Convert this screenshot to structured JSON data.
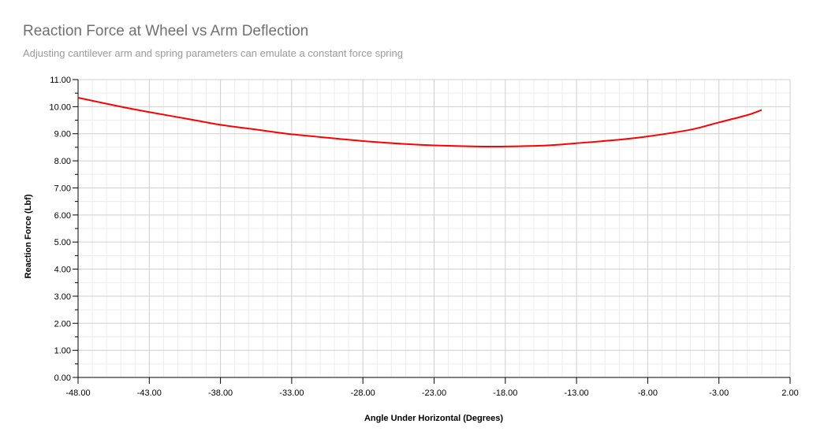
{
  "chart_data": {
    "type": "line",
    "title": "Reaction Force at Wheel vs Arm Deflection",
    "subtitle": "Adjusting cantilever arm and spring parameters can emulate a constant force spring",
    "xlabel": "Angle Under Horizontal (Degrees)",
    "ylabel": "Reaction Force (Lbf)",
    "xlim": [
      -48,
      2
    ],
    "ylim": [
      0,
      11
    ],
    "x_ticks": [
      "-48.00",
      "-43.00",
      "-38.00",
      "-33.00",
      "-28.00",
      "-23.00",
      "-18.00",
      "-13.00",
      "-8.00",
      "-3.00",
      "2.00"
    ],
    "y_ticks": [
      "0.00",
      "1.00",
      "2.00",
      "3.00",
      "4.00",
      "5.00",
      "6.00",
      "7.00",
      "8.00",
      "9.00",
      "10.00",
      "11.00"
    ],
    "grid": true,
    "legend": "none",
    "series": [
      {
        "color": "#ff0000",
        "x": [
          -48,
          -45,
          -43,
          -40,
          -38,
          -35,
          -33,
          -30,
          -28,
          -25,
          -23,
          -20,
          -18,
          -15,
          -13,
          -10,
          -8,
          -5,
          -3,
          -1,
          0
        ],
        "y": [
          10.33,
          10.0,
          9.8,
          9.52,
          9.33,
          9.12,
          8.98,
          8.83,
          8.73,
          8.62,
          8.57,
          8.53,
          8.53,
          8.57,
          8.65,
          8.78,
          8.9,
          9.15,
          9.42,
          9.69,
          9.88
        ]
      }
    ]
  }
}
